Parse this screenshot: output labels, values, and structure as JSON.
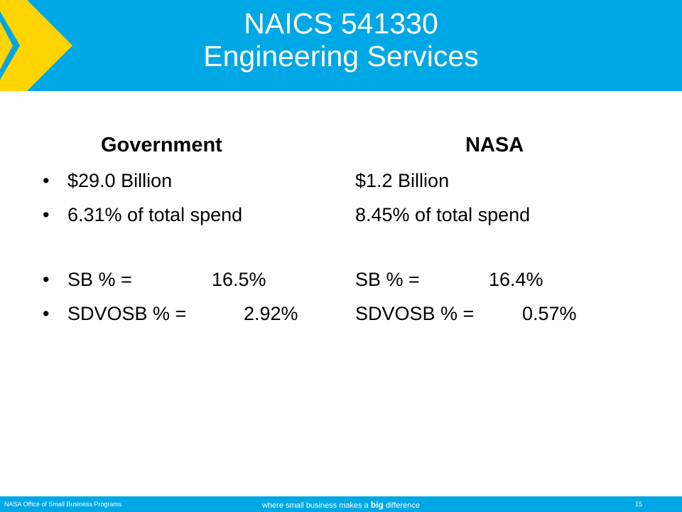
{
  "slide": {
    "title_line1": "NAICS 541330",
    "title_line2": "Engineering Services"
  },
  "columns": {
    "government": {
      "heading": "Government",
      "spend": "$29.0 Billion",
      "share": "6.31% of total spend",
      "sb_label": "SB % =",
      "sb_value": "16.5%",
      "sdvosb_label": "SDVOSB % =",
      "sdvosb_value": "2.92%"
    },
    "nasa": {
      "heading": "NASA",
      "spend": "$1.2 Billion",
      "share": "8.45% of total spend",
      "sb_label": "SB % =",
      "sb_value": "16.4%",
      "sdvosb_label": "SDVOSB % =",
      "sdvosb_value": "0.57%"
    }
  },
  "bullet_glyph": "•",
  "footer": {
    "org": "NASA Office of Small Business Programs",
    "tagline_pre": "where small business makes a",
    "tagline_bold": "big",
    "tagline_post": "difference",
    "page_number": "15"
  },
  "colors": {
    "header_blue": "#00a7e5",
    "chevron_yellow": "#ffd400",
    "text": "#000000"
  }
}
